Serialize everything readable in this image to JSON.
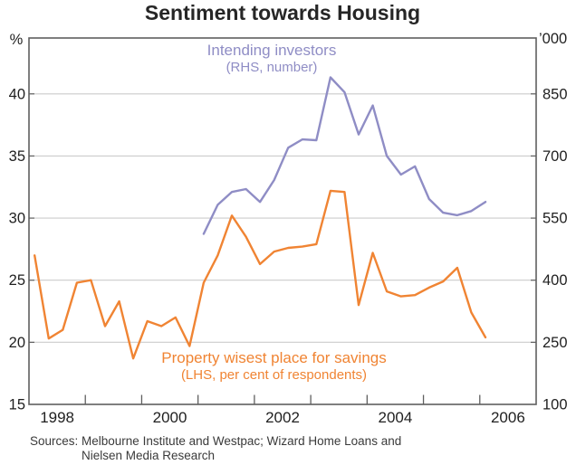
{
  "header": {
    "title": "Sentiment towards Housing"
  },
  "annotations": {
    "investors_line1": "Intending investors",
    "investors_line2": "(RHS, number)",
    "property_line1": "Property wisest place for savings",
    "property_line2": "(LHS, per cent of respondents)"
  },
  "sources": {
    "line1": "Sources: Melbourne Institute and Westpac; Wizard Home Loans and",
    "line2": "Nielsen Media Research"
  },
  "colors": {
    "investors_line": "#8f8dc5",
    "property_line": "#f08433",
    "gridline": "#cccccc",
    "frame": "#5f5f5f",
    "axis_text": "#1f1f1f"
  },
  "chart_data": {
    "type": "line",
    "title": "Sentiment towards Housing",
    "grid": true,
    "x_axis": {
      "range": [
        1998,
        2007
      ],
      "year_labels": [
        1998,
        2000,
        2002,
        2004,
        2006
      ],
      "inner_tick_years": [
        1999,
        2000,
        2001,
        2002,
        2003,
        2004,
        2005,
        2006
      ]
    },
    "left_axis": {
      "unit": "%",
      "ticks": [
        40,
        35,
        30,
        25,
        20,
        15
      ],
      "range": [
        15,
        44.5
      ]
    },
    "right_axis": {
      "unit": "’000",
      "ticks": [
        850,
        700,
        550,
        400,
        250,
        100
      ],
      "range": [
        100,
        985
      ]
    },
    "series": [
      {
        "name": "Intending investors",
        "axis": "right",
        "color": "#8f8dc5",
        "x": [
          2001.1,
          2001.35,
          2001.6,
          2001.85,
          2002.1,
          2002.35,
          2002.6,
          2002.85,
          2003.1,
          2003.35,
          2003.6,
          2003.85,
          2004.1,
          2004.35,
          2004.6,
          2004.85,
          2005.1,
          2005.35,
          2005.6,
          2005.85,
          2006.1
        ],
        "values": [
          512,
          582,
          613,
          620,
          589,
          642,
          720,
          740,
          738,
          890,
          854,
          752,
          822,
          700,
          655,
          675,
          596,
          563,
          557,
          567,
          589
        ]
      },
      {
        "name": "Property wisest place for savings",
        "axis": "left",
        "color": "#f08433",
        "x": [
          1998.1,
          1998.35,
          1998.6,
          1998.85,
          1999.1,
          1999.35,
          1999.6,
          1999.85,
          2000.1,
          2000.35,
          2000.6,
          2000.85,
          2001.1,
          2001.35,
          2001.6,
          2001.85,
          2002.1,
          2002.35,
          2002.6,
          2002.85,
          2003.1,
          2003.35,
          2003.6,
          2003.85,
          2004.1,
          2004.35,
          2004.6,
          2004.85,
          2005.1,
          2005.35,
          2005.6,
          2005.85,
          2006.1
        ],
        "values": [
          27.0,
          20.3,
          21.0,
          24.8,
          25.0,
          21.3,
          23.3,
          18.7,
          21.7,
          21.3,
          22.0,
          19.7,
          24.8,
          27.0,
          30.2,
          28.5,
          26.3,
          27.3,
          27.6,
          27.7,
          27.9,
          32.2,
          32.1,
          23.0,
          27.2,
          24.1,
          23.7,
          23.8,
          24.4,
          24.9,
          26.0,
          22.4,
          20.4
        ]
      }
    ]
  }
}
